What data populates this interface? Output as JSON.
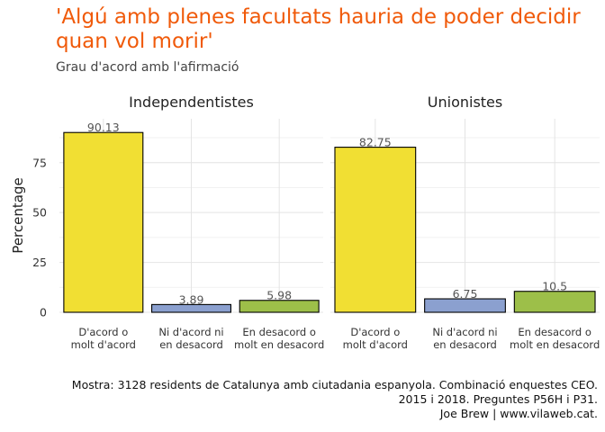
{
  "title": "'Algú amb plenes facultats hauria de poder decidir quan vol morir'",
  "subtitle": "Grau d'acord amb l'afirmació",
  "caption": [
    "Mostra: 3128 residents de Catalunya amb ciutadania espanyola. Combinació enquestes CEO.",
    "2015 i 2018. Preguntes P56H i P31.",
    "Joe Brew | www.vilaweb.cat."
  ],
  "colors": {
    "title": "#f05a0a",
    "D'acord o molt d'acord": "#f1df33",
    "Ni d'acord ni en desacord": "#8ba0cf",
    "En desacord o molt en desacord": "#9dbf49"
  },
  "chart_data": {
    "type": "bar",
    "ylabel": "Percentage",
    "xlabel": "",
    "ylim": [
      0,
      97
    ],
    "yticks": [
      0,
      25,
      50,
      75
    ],
    "grid": true,
    "categories": [
      [
        "D'acord o",
        "molt d'acord"
      ],
      [
        "Ni d'acord ni",
        "en desacord"
      ],
      [
        "En desacord o",
        "molt en desacord"
      ]
    ],
    "category_keys": [
      "D'acord o molt d'acord",
      "Ni d'acord ni en desacord",
      "En desacord o molt en desacord"
    ],
    "panels": [
      {
        "name": "Independentistes",
        "values": [
          90.13,
          3.89,
          5.98
        ],
        "labels": [
          "90.13",
          "3.89",
          "5.98"
        ]
      },
      {
        "name": "Unionistes",
        "values": [
          82.75,
          6.75,
          10.5
        ],
        "labels": [
          "82.75",
          "6.75",
          "10.5"
        ]
      }
    ]
  }
}
